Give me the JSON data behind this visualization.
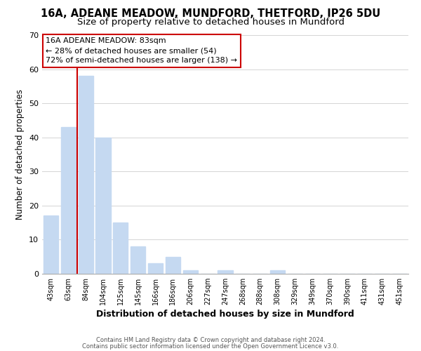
{
  "title": "16A, ADEANE MEADOW, MUNDFORD, THETFORD, IP26 5DU",
  "subtitle": "Size of property relative to detached houses in Mundford",
  "xlabel": "Distribution of detached houses by size in Mundford",
  "ylabel": "Number of detached properties",
  "bar_labels": [
    "43sqm",
    "63sqm",
    "84sqm",
    "104sqm",
    "125sqm",
    "145sqm",
    "166sqm",
    "186sqm",
    "206sqm",
    "227sqm",
    "247sqm",
    "268sqm",
    "288sqm",
    "308sqm",
    "329sqm",
    "349sqm",
    "370sqm",
    "390sqm",
    "411sqm",
    "431sqm",
    "451sqm"
  ],
  "bar_values": [
    17,
    43,
    58,
    40,
    15,
    8,
    3,
    5,
    1,
    0,
    1,
    0,
    0,
    1,
    0,
    0,
    0,
    0,
    0,
    0,
    0
  ],
  "bar_color": "#c5d9f1",
  "bar_edge_color": "#c5d9f1",
  "highlight_line_color": "#cc0000",
  "red_line_x": 1.5,
  "ylim": [
    0,
    70
  ],
  "yticks": [
    0,
    10,
    20,
    30,
    40,
    50,
    60,
    70
  ],
  "annotation_title": "16A ADEANE MEADOW: 83sqm",
  "annotation_line1": "← 28% of detached houses are smaller (54)",
  "annotation_line2": "72% of semi-detached houses are larger (138) →",
  "annotation_box_color": "#ffffff",
  "annotation_box_edge_color": "#cc0000",
  "footer_line1": "Contains HM Land Registry data © Crown copyright and database right 2024.",
  "footer_line2": "Contains public sector information licensed under the Open Government Licence v3.0.",
  "background_color": "#ffffff",
  "grid_color": "#d4d4d4",
  "title_fontsize": 10.5,
  "subtitle_fontsize": 9.5,
  "bar_width": 0.85
}
